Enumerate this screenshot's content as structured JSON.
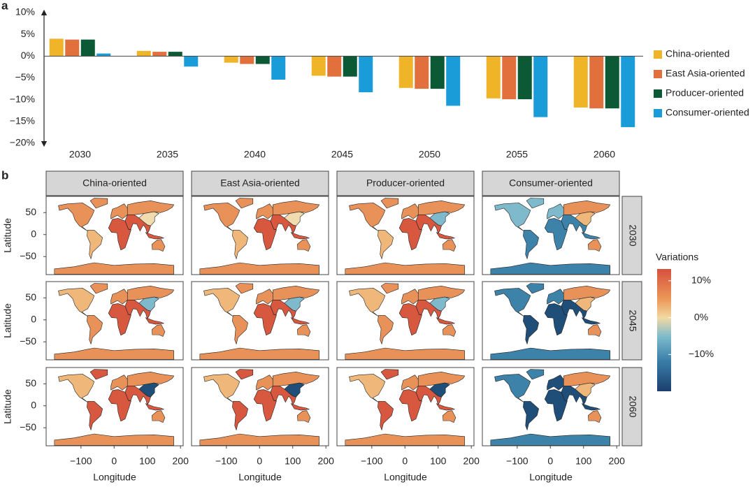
{
  "chart_data": [
    {
      "type": "bar",
      "panel_label": "a",
      "categories": [
        "2030",
        "2035",
        "2040",
        "2045",
        "2050",
        "2055",
        "2060"
      ],
      "series": [
        {
          "name": "China-oriented",
          "color": "#f0b429",
          "values": [
            4.0,
            1.2,
            -1.5,
            -4.5,
            -7.3,
            -9.7,
            -11.8
          ]
        },
        {
          "name": "East Asia-oriented",
          "color": "#e2703c",
          "values": [
            3.8,
            1.0,
            -1.8,
            -4.7,
            -7.5,
            -9.9,
            -12.0
          ]
        },
        {
          "name": "Producer-oriented",
          "color": "#0b5a35",
          "values": [
            3.8,
            1.0,
            -1.8,
            -4.7,
            -7.5,
            -9.9,
            -12.0
          ]
        },
        {
          "name": "Consumer-oriented",
          "color": "#1a9cd8",
          "values": [
            0.6,
            -2.4,
            -5.4,
            -8.3,
            -11.4,
            -14.0,
            -16.3
          ]
        }
      ],
      "ylim": [
        -20,
        10
      ],
      "yticks": [
        {
          "value": -20,
          "label": "−20%"
        },
        {
          "value": -15,
          "label": "−15%"
        },
        {
          "value": -10,
          "label": "−10%"
        },
        {
          "value": -5,
          "label": "−5%"
        },
        {
          "value": 0,
          "label": "0%"
        },
        {
          "value": 5,
          "label": "5%"
        },
        {
          "value": 10,
          "label": "10%"
        }
      ],
      "legend": "right",
      "grid": false
    },
    {
      "type": "map",
      "panel_label": "b",
      "facet_columns": [
        "China-oriented",
        "East Asia-oriented",
        "Producer-oriented",
        "Consumer-oriented"
      ],
      "facet_rows": [
        "2030",
        "2045",
        "2060"
      ],
      "xlabel": "Longitude",
      "ylabel": "Latitude",
      "xlim": [
        -205,
        208
      ],
      "xticks": [
        {
          "value": -100,
          "label": "−100"
        },
        0,
        100,
        200
      ],
      "ylim": [
        -91,
        87
      ],
      "yticks": [
        50,
        0,
        {
          "value": -50,
          "label": "−50"
        }
      ],
      "colorbar": {
        "title": "Variations",
        "lim": [
          -20,
          13.2
        ],
        "ticks": [
          {
            "value": 10,
            "label": "10%"
          },
          {
            "value": 0,
            "label": "0%"
          },
          {
            "value": -10,
            "label": "−10%"
          }
        ]
      }
    }
  ]
}
